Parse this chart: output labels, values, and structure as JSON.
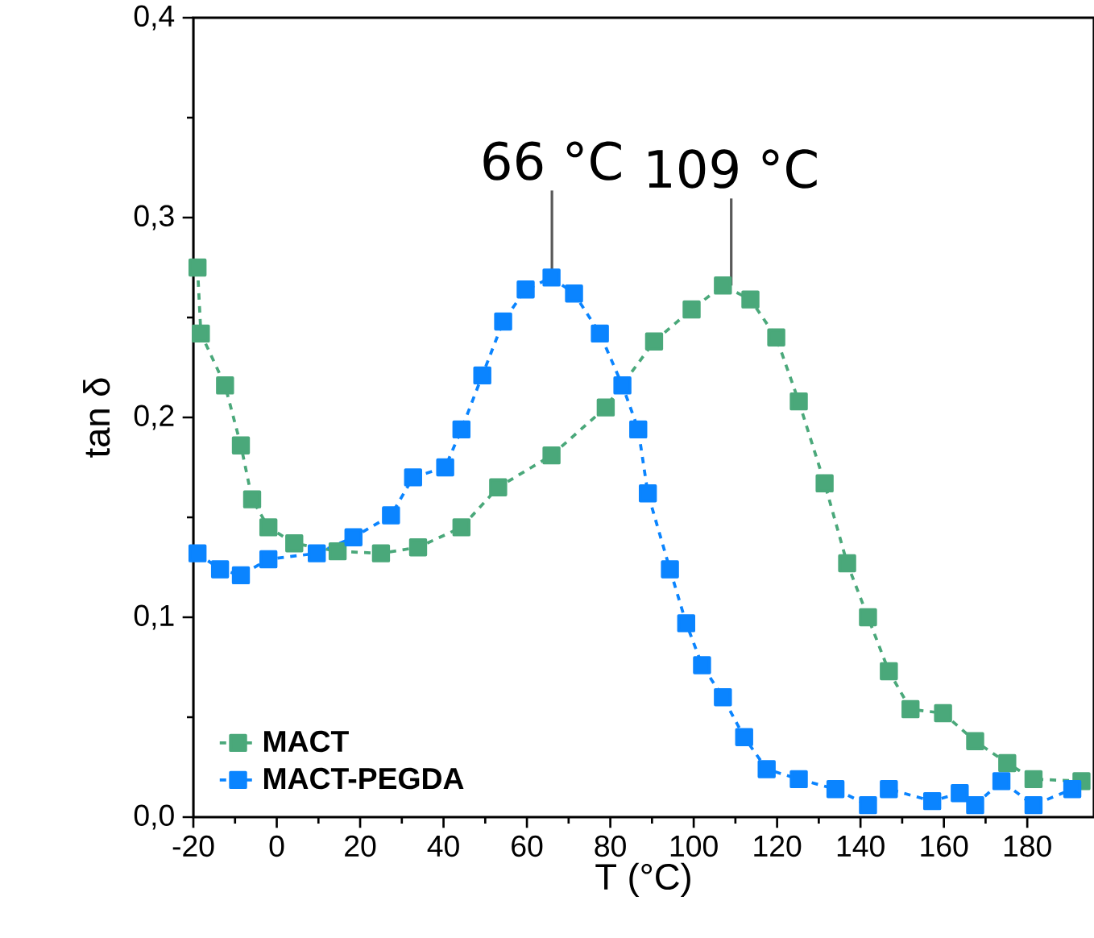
{
  "chart_data": {
    "type": "line",
    "xlabel": "T (°C)",
    "ylabel": "tan δ",
    "xlim": [
      -20,
      196
    ],
    "xticks": [
      -20,
      0,
      20,
      40,
      60,
      80,
      100,
      120,
      140,
      160,
      180
    ],
    "ylim": [
      0,
      0.4
    ],
    "yticks": [
      {
        "value": 0,
        "label": "0,0"
      },
      {
        "value": 0.1,
        "label": "0,1"
      },
      {
        "value": 0.2,
        "label": "0,2"
      },
      {
        "value": 0.3,
        "label": "0,3"
      },
      {
        "value": 0.4,
        "label": "0,4"
      }
    ],
    "marker": "square",
    "line_style": "dashed",
    "legend": "bottom left",
    "grid": false,
    "annotations": [
      {
        "text": "66 °C",
        "x": 66,
        "y": 0.27
      },
      {
        "text": "109 °C",
        "x": 109,
        "y": 0.266
      }
    ],
    "series": [
      {
        "name": "MACT",
        "color": "#4aa87a",
        "x": [
          -19,
          -18.2,
          -12.4,
          -8.6,
          -5.9,
          -2,
          4.2,
          14.6,
          25,
          33.9,
          44.3,
          53.1,
          65.9,
          78.9,
          90.5,
          99.5,
          107,
          113.6,
          119.8,
          125.2,
          131.4,
          136.8,
          141.8,
          146.8,
          152,
          159.8,
          167.5,
          175.2,
          181.5,
          193
        ],
        "values": [
          0.275,
          0.242,
          0.216,
          0.186,
          0.159,
          0.145,
          0.137,
          0.133,
          0.132,
          0.135,
          0.145,
          0.165,
          0.181,
          0.205,
          0.238,
          0.254,
          0.266,
          0.259,
          0.24,
          0.208,
          0.167,
          0.127,
          0.1,
          0.073,
          0.054,
          0.052,
          0.038,
          0.027,
          0.019,
          0.018
        ]
      },
      {
        "name": "MACT-PEGDA",
        "color": "#0a84ff",
        "x": [
          -19,
          -13.6,
          -8.6,
          -2,
          9.6,
          18.4,
          27.4,
          32.7,
          40.4,
          44.3,
          49.3,
          54.3,
          59.7,
          65.9,
          71.3,
          77.5,
          82.9,
          86.7,
          89,
          94.3,
          98.2,
          102,
          107,
          112.1,
          117.5,
          125.2,
          134,
          141.8,
          146.8,
          157.2,
          163.8,
          167.5,
          173.8,
          181.5,
          190.8
        ],
        "values": [
          0.132,
          0.124,
          0.121,
          0.129,
          0.132,
          0.14,
          0.151,
          0.17,
          0.175,
          0.194,
          0.221,
          0.248,
          0.264,
          0.27,
          0.262,
          0.242,
          0.216,
          0.194,
          0.162,
          0.124,
          0.097,
          0.076,
          0.06,
          0.04,
          0.024,
          0.019,
          0.014,
          0.006,
          0.014,
          0.008,
          0.012,
          0.006,
          0.018,
          0.006,
          0.014
        ]
      }
    ]
  }
}
